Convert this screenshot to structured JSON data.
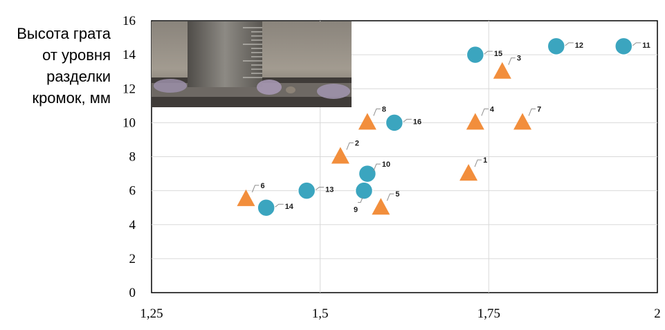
{
  "chart_data": {
    "type": "scatter",
    "ylabel_lines": [
      "Высота грата",
      "от уровня",
      "разделки",
      "кромок, мм"
    ],
    "xlabel": "",
    "xlim": [
      1.25,
      2
    ],
    "ylim": [
      0,
      16
    ],
    "x_ticks": [
      1.25,
      1.5,
      1.75,
      2
    ],
    "x_tick_labels": [
      "1,25",
      "1,5",
      "1,75",
      "2"
    ],
    "y_ticks": [
      0,
      2,
      4,
      6,
      8,
      10,
      12,
      14,
      16
    ],
    "y_tick_labels": [
      "0",
      "2",
      "4",
      "6",
      "8",
      "10",
      "12",
      "14",
      "16"
    ],
    "grid": true,
    "colors": {
      "triangle": "#f28e3c",
      "circle": "#3ba5bf",
      "grid": "#d9d9d9",
      "axis": "#000000"
    },
    "inset_photo": "weld burr measurement photo with ruler (top-left corner)",
    "series": [
      {
        "marker": "triangle",
        "points": [
          {
            "id": "1",
            "x": 1.72,
            "y": 7
          },
          {
            "id": "2",
            "x": 1.53,
            "y": 8
          },
          {
            "id": "3",
            "x": 1.77,
            "y": 13
          },
          {
            "id": "4",
            "x": 1.73,
            "y": 10
          },
          {
            "id": "5",
            "x": 1.59,
            "y": 5
          },
          {
            "id": "6",
            "x": 1.39,
            "y": 5.5
          },
          {
            "id": "7",
            "x": 1.8,
            "y": 10
          },
          {
            "id": "8",
            "x": 1.57,
            "y": 10
          }
        ]
      },
      {
        "marker": "circle",
        "points": [
          {
            "id": "9",
            "x": 1.565,
            "y": 6
          },
          {
            "id": "10",
            "x": 1.57,
            "y": 7
          },
          {
            "id": "11",
            "x": 1.95,
            "y": 14.5
          },
          {
            "id": "12",
            "x": 1.85,
            "y": 14.5
          },
          {
            "id": "13",
            "x": 1.48,
            "y": 6
          },
          {
            "id": "14",
            "x": 1.42,
            "y": 5
          },
          {
            "id": "15",
            "x": 1.73,
            "y": 14
          },
          {
            "id": "16",
            "x": 1.61,
            "y": 10
          }
        ]
      }
    ]
  }
}
